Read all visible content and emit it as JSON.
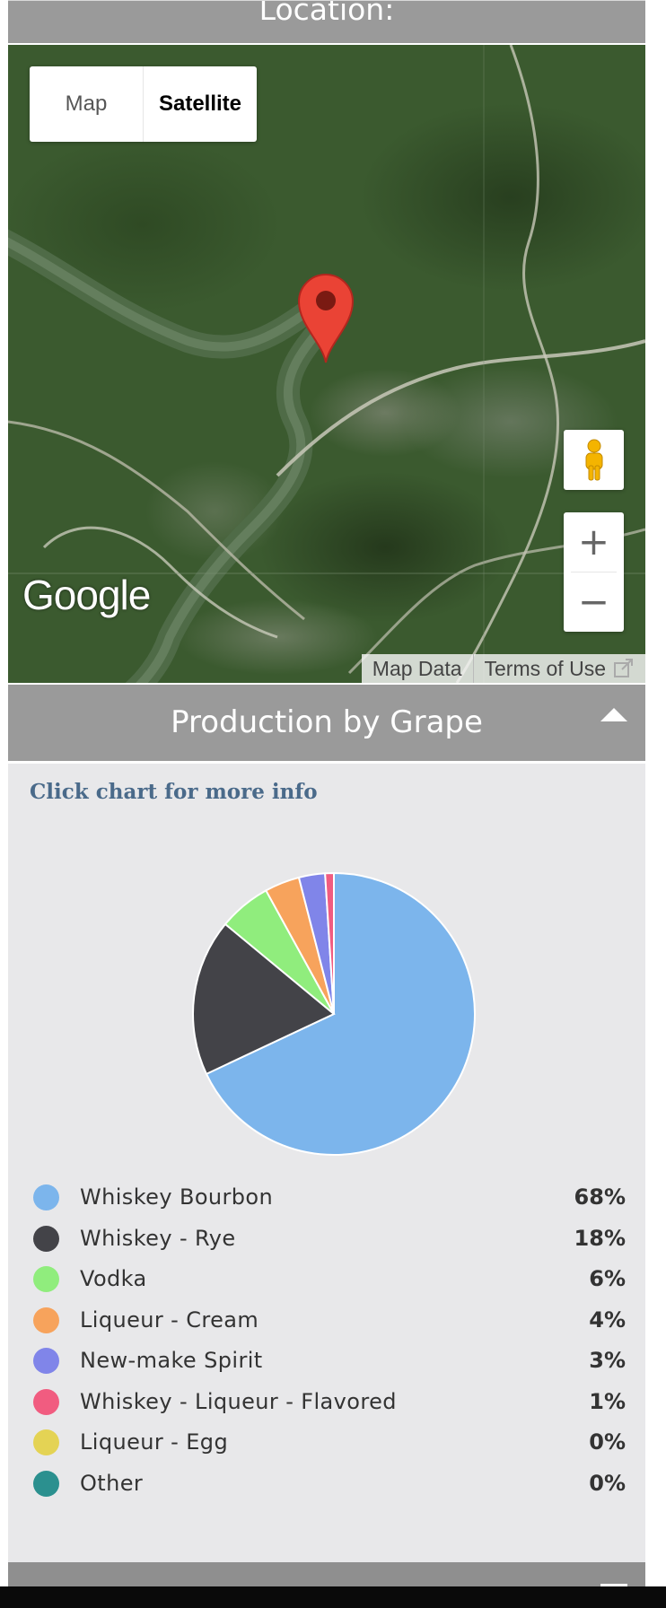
{
  "location": {
    "title": "Location:"
  },
  "map": {
    "type_options": [
      {
        "label": "Map",
        "active": false
      },
      {
        "label": "Satellite",
        "active": true
      }
    ],
    "logo": "Google",
    "footer": {
      "map_data": "Map Data",
      "terms": "Terms of Use"
    },
    "icons": {
      "marker": "map-marker-icon",
      "pegman": "street-view-pegman-icon",
      "zoom_in": "plus-icon",
      "zoom_out": "minus-icon",
      "external": "external-link-icon"
    },
    "zoom_in_label": "+",
    "zoom_out_label": "−"
  },
  "production": {
    "title": "Production by Grape",
    "collapse_icon": "caret-up-icon",
    "hint": "Click chart for more info"
  },
  "chart_data": {
    "type": "pie",
    "categories": [
      "Whiskey Bourbon",
      "Whiskey - Rye",
      "Vodka",
      "Liqueur - Cream",
      "New-make Spirit",
      "Whiskey - Liqueur - Flavored",
      "Liqueur - Egg",
      "Other"
    ],
    "values": [
      68,
      18,
      6,
      4,
      3,
      1,
      0,
      0
    ],
    "labels": [
      "68%",
      "18%",
      "6%",
      "4%",
      "3%",
      "1%",
      "0%",
      "0%"
    ],
    "colors": [
      "#7cb5ec",
      "#434348",
      "#90ed7d",
      "#f7a35c",
      "#8085e9",
      "#f15c80",
      "#e4d354",
      "#2b908f"
    ],
    "legend_placement": "bottom"
  }
}
